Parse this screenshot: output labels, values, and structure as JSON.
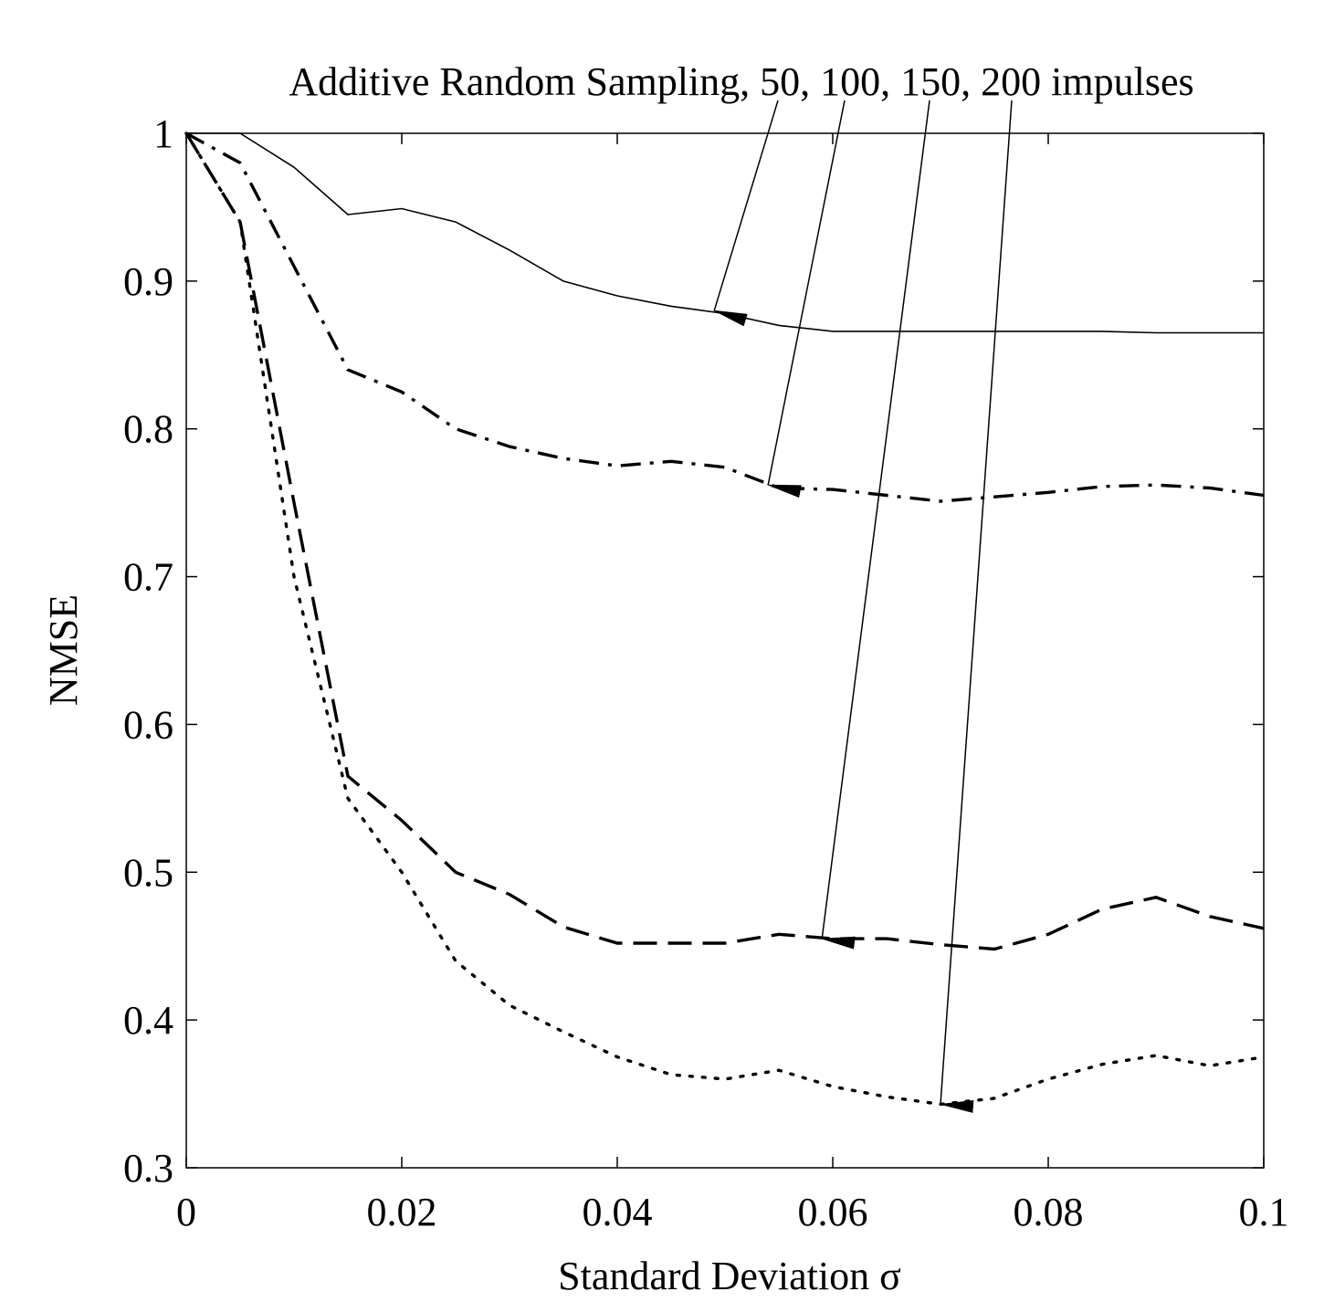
{
  "chart_data": {
    "type": "line",
    "title": "Additive Random Sampling, 50, 100, 150, 200 impulses",
    "xlabel": "Standard Deviation σ",
    "ylabel": "NMSE",
    "xlim": [
      0,
      0.1
    ],
    "ylim": [
      0.3,
      1
    ],
    "xticks": [
      0,
      0.02,
      0.04,
      0.06,
      0.08,
      0.1
    ],
    "xtick_labels": [
      "0",
      "0.02",
      "0.04",
      "0.06",
      "0.08",
      "0.1"
    ],
    "yticks": [
      0.3,
      0.4,
      0.5,
      0.6,
      0.7,
      0.8,
      0.9,
      1
    ],
    "ytick_labels": [
      "0.3",
      "0.4",
      "0.5",
      "0.6",
      "0.7",
      "0.8",
      "0.9",
      "1"
    ],
    "grid": false,
    "legend": "none",
    "series": [
      {
        "style": "solid",
        "x": [
          0,
          0.005,
          0.01,
          0.015,
          0.02,
          0.025,
          0.03,
          0.035,
          0.04,
          0.045,
          0.05,
          0.055,
          0.06,
          0.065,
          0.07,
          0.075,
          0.08,
          0.085,
          0.09,
          0.095,
          0.1
        ],
        "y": [
          1.0,
          1.0,
          0.977,
          0.945,
          0.949,
          0.94,
          0.921,
          0.9,
          0.89,
          0.883,
          0.878,
          0.87,
          0.866,
          0.866,
          0.866,
          0.866,
          0.866,
          0.866,
          0.865,
          0.865,
          0.865
        ]
      },
      {
        "style": "dash-dot",
        "x": [
          0,
          0.005,
          0.01,
          0.015,
          0.02,
          0.025,
          0.03,
          0.035,
          0.04,
          0.045,
          0.05,
          0.055,
          0.06,
          0.065,
          0.07,
          0.075,
          0.08,
          0.085,
          0.09,
          0.095,
          0.1
        ],
        "y": [
          1.0,
          0.98,
          0.91,
          0.84,
          0.825,
          0.8,
          0.788,
          0.78,
          0.775,
          0.778,
          0.774,
          0.76,
          0.759,
          0.755,
          0.751,
          0.754,
          0.757,
          0.761,
          0.762,
          0.76,
          0.755
        ]
      },
      {
        "style": "dashed",
        "x": [
          0,
          0.005,
          0.01,
          0.015,
          0.02,
          0.025,
          0.03,
          0.035,
          0.04,
          0.045,
          0.05,
          0.055,
          0.06,
          0.065,
          0.07,
          0.075,
          0.08,
          0.085,
          0.09,
          0.095,
          0.1
        ],
        "y": [
          1.0,
          0.94,
          0.75,
          0.565,
          0.535,
          0.5,
          0.485,
          0.463,
          0.452,
          0.452,
          0.452,
          0.458,
          0.455,
          0.455,
          0.451,
          0.448,
          0.458,
          0.475,
          0.483,
          0.47,
          0.462
        ]
      },
      {
        "style": "dotted",
        "x": [
          0,
          0.005,
          0.01,
          0.015,
          0.02,
          0.025,
          0.03,
          0.035,
          0.04,
          0.045,
          0.05,
          0.055,
          0.06,
          0.065,
          0.07,
          0.075,
          0.08,
          0.085,
          0.09,
          0.095,
          0.1
        ],
        "y": [
          1.0,
          0.94,
          0.7,
          0.55,
          0.5,
          0.44,
          0.41,
          0.392,
          0.375,
          0.363,
          0.36,
          0.366,
          0.355,
          0.348,
          0.343,
          0.347,
          0.36,
          0.37,
          0.376,
          0.369,
          0.375
        ]
      }
    ],
    "annotations": [
      {
        "target_series": 0,
        "point": [
          0.049,
          0.88
        ]
      },
      {
        "target_series": 1,
        "point": [
          0.054,
          0.762
        ]
      },
      {
        "target_series": 2,
        "point": [
          0.059,
          0.455
        ]
      },
      {
        "target_series": 3,
        "point": [
          0.07,
          0.343
        ]
      }
    ]
  }
}
